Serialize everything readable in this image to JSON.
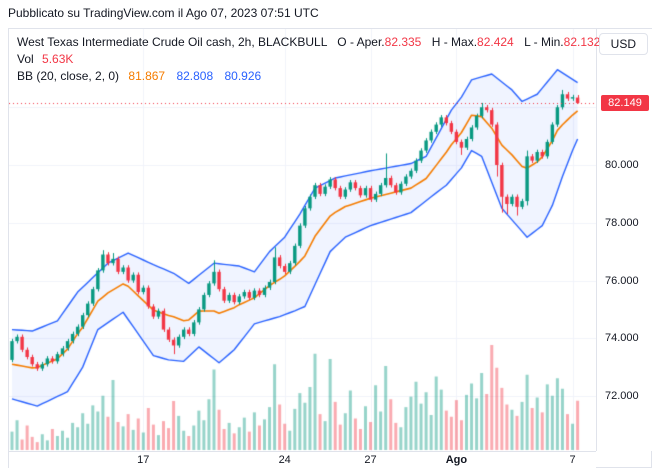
{
  "header": {
    "published_line": "Pubblicato su TradingView.com il Ago 07, 2023 07:51 UTC"
  },
  "currency_button": "USD",
  "legend": {
    "title": "West Texas Intermediate Crude Oil cash, 2h, BLACKBULL",
    "ohlc": [
      {
        "label": "O - Aper.",
        "value": "82.335"
      },
      {
        "label": "H - Max.",
        "value": "82.424"
      },
      {
        "label": "L - Min.",
        "value": "82.132..."
      }
    ],
    "volume_label": "Vol",
    "volume_value": "5.63K",
    "bb_label": "BB (20, close, 2, 0)",
    "bb_values": [
      {
        "value": "81.867",
        "color": "#f57c00"
      },
      {
        "value": "82.808",
        "color": "#2962ff"
      },
      {
        "value": "80.926",
        "color": "#2962ff"
      }
    ]
  },
  "price_axis": {
    "ticks": [
      {
        "label": "80.000",
        "price": 80
      },
      {
        "label": "78.000",
        "price": 78
      },
      {
        "label": "76.000",
        "price": 76
      },
      {
        "label": "74.000",
        "price": 74
      },
      {
        "label": "72.000",
        "price": 72
      }
    ],
    "last_price_label": "82.149",
    "last_price": 82.149
  },
  "time_axis": {
    "labels": [
      {
        "label": "17",
        "index": 26,
        "bold": false
      },
      {
        "label": "24",
        "index": 54,
        "bold": false
      },
      {
        "label": "27",
        "index": 71,
        "bold": false
      },
      {
        "label": "Ago",
        "index": 88,
        "bold": true
      },
      {
        "label": "7",
        "index": 111,
        "bold": false
      }
    ]
  },
  "chart_data": {
    "type": "candlestick",
    "title": "West Texas Intermediate Crude Oil cash, 2h, BLACKBULL",
    "ylabel": "USD",
    "ylim": [
      71.4,
      84.7
    ],
    "gridline_prices": [
      82,
      80,
      78,
      76,
      74,
      72
    ],
    "price_line": 82.149,
    "candles": {
      "first_open": 73.25,
      "default_wick": 0.08,
      "closes": [
        73.9,
        74.05,
        73.6,
        73.35,
        73.1,
        72.95,
        73.1,
        73.3,
        73.2,
        73.45,
        73.65,
        73.9,
        74.15,
        74.4,
        74.8,
        75.2,
        75.7,
        76.35,
        76.9,
        76.6,
        76.75,
        76.3,
        76.45,
        76.0,
        76.2,
        75.6,
        75.75,
        75.1,
        74.75,
        74.95,
        74.3,
        73.95,
        73.75,
        74.05,
        74.3,
        74.15,
        74.55,
        75.0,
        75.5,
        75.9,
        76.3,
        75.7,
        75.3,
        75.5,
        75.25,
        75.45,
        75.6,
        75.4,
        75.65,
        75.5,
        75.75,
        75.95,
        76.8,
        76.5,
        76.3,
        76.6,
        77.2,
        77.9,
        78.5,
        78.9,
        79.3,
        79.0,
        79.25,
        79.5,
        79.2,
        78.9,
        79.15,
        79.4,
        79.2,
        78.95,
        79.2,
        78.8,
        79.0,
        79.3,
        79.55,
        79.3,
        79.05,
        79.35,
        79.6,
        79.8,
        80.15,
        80.5,
        80.85,
        81.15,
        81.4,
        81.65,
        81.45,
        81.15,
        80.8,
        80.6,
        80.9,
        81.3,
        81.7,
        82.0,
        81.9,
        81.4,
        80.0,
        78.9,
        78.65,
        78.9,
        78.55,
        78.75,
        80.3,
        80.15,
        80.45,
        80.3,
        80.8,
        81.4,
        82.0,
        82.45,
        82.3,
        82.35,
        82.149
      ],
      "overrides": {
        "18": {
          "h": 77.05
        },
        "20": {
          "h": 76.95
        },
        "32": {
          "l": 73.45
        },
        "40": {
          "h": 76.7
        },
        "52": {
          "h": 77.15
        },
        "74": {
          "h": 80.4
        },
        "89": {
          "l": 80.35
        },
        "93": {
          "h": 82.15
        },
        "96": {
          "l": 79.6
        },
        "97": {
          "l": 78.35
        },
        "98": {
          "l": 78.3
        },
        "100": {
          "l": 78.25
        },
        "102": {
          "h": 80.5,
          "l": 78.6
        },
        "109": {
          "h": 82.6
        },
        "112": {
          "o": 82.335,
          "h": 82.424,
          "l": 82.132
        }
      }
    },
    "volumes_k": [
      2.1,
      3.4,
      1.2,
      2.8,
      1.5,
      0.9,
      1.8,
      1.1,
      2.4,
      1.6,
      2.2,
      1.4,
      3.1,
      2.6,
      4.2,
      3.0,
      5.1,
      4.4,
      6.2,
      3.8,
      8.0,
      3.2,
      2.7,
      4.1,
      2.3,
      3.6,
      2.0,
      4.8,
      2.9,
      1.7,
      3.3,
      2.5,
      5.6,
      3.9,
      2.2,
      1.6,
      2.8,
      4.5,
      3.4,
      5.8,
      9.2,
      4.6,
      2.4,
      3.1,
      1.9,
      2.6,
      3.7,
      2.1,
      4.3,
      2.8,
      3.5,
      4.9,
      9.8,
      5.2,
      3.0,
      2.2,
      4.7,
      6.5,
      5.4,
      7.2,
      11.0,
      4.1,
      3.3,
      10.4,
      5.5,
      2.9,
      4.2,
      6.8,
      3.6,
      2.4,
      5.0,
      3.2,
      7.4,
      4.4,
      9.6,
      5.8,
      3.1,
      2.6,
      4.9,
      6.1,
      7.8,
      5.3,
      6.6,
      4.0,
      8.4,
      6.9,
      4.5,
      3.8,
      5.7,
      3.4,
      6.3,
      7.6,
      5.9,
      8.8,
      6.4,
      12.0,
      9.4,
      7.1,
      5.2,
      4.6,
      3.9,
      5.5,
      8.6,
      4.8,
      6.0,
      4.3,
      7.5,
      6.2,
      8.2,
      7.0,
      4.1,
      3.0,
      5.63
    ],
    "bollinger": {
      "period_label": "BB (20, close, 2, 0)",
      "upper_waypoints": [
        [
          0,
          74.3
        ],
        [
          4,
          74.25
        ],
        [
          9,
          74.6
        ],
        [
          13,
          75.6
        ],
        [
          16,
          76.1
        ],
        [
          19,
          76.6
        ],
        [
          23,
          76.95
        ],
        [
          28,
          76.55
        ],
        [
          32,
          76.25
        ],
        [
          35,
          75.9
        ],
        [
          40,
          76.6
        ],
        [
          45,
          76.5
        ],
        [
          48,
          76.3
        ],
        [
          51,
          77.0
        ],
        [
          54,
          77.5
        ],
        [
          57,
          78.3
        ],
        [
          60,
          79.2
        ],
        [
          64,
          79.55
        ],
        [
          71,
          79.8
        ],
        [
          79,
          80.05
        ],
        [
          82,
          80.3
        ],
        [
          87,
          81.9
        ],
        [
          89,
          82.35
        ],
        [
          91,
          82.95
        ],
        [
          95,
          83.15
        ],
        [
          99,
          82.6
        ],
        [
          101,
          82.2
        ],
        [
          104,
          82.45
        ],
        [
          108,
          83.3
        ],
        [
          112,
          82.85
        ]
      ],
      "lower_waypoints": [
        [
          0,
          71.9
        ],
        [
          5,
          71.65
        ],
        [
          11,
          72.15
        ],
        [
          14,
          73.0
        ],
        [
          17,
          74.3
        ],
        [
          22,
          74.9
        ],
        [
          28,
          73.4
        ],
        [
          31,
          73.25
        ],
        [
          34,
          73.2
        ],
        [
          37,
          73.7
        ],
        [
          41,
          73.15
        ],
        [
          44,
          73.6
        ],
        [
          48,
          74.5
        ],
        [
          53,
          74.75
        ],
        [
          56,
          74.95
        ],
        [
          58,
          75.1
        ],
        [
          63,
          77.0
        ],
        [
          66,
          77.5
        ],
        [
          71,
          77.9
        ],
        [
          79,
          78.35
        ],
        [
          83,
          78.9
        ],
        [
          86,
          79.3
        ],
        [
          89,
          79.9
        ],
        [
          91,
          80.5
        ],
        [
          93,
          80.3
        ],
        [
          97,
          78.5
        ],
        [
          100,
          77.9
        ],
        [
          102,
          77.5
        ],
        [
          105,
          77.9
        ],
        [
          107,
          78.6
        ],
        [
          109,
          79.6
        ],
        [
          111,
          80.5
        ],
        [
          112,
          80.9
        ]
      ]
    },
    "colors": {
      "up": "#089981",
      "down": "#f23645",
      "band_line": "#2962ff",
      "band_fill": "rgba(41,98,255,0.07)",
      "basis_line": "#f57c00",
      "grid": "#f0f3fa",
      "price_line": "#f23645",
      "vol_up": "rgba(8,153,129,0.42)",
      "vol_down": "rgba(242,54,69,0.42)"
    }
  }
}
